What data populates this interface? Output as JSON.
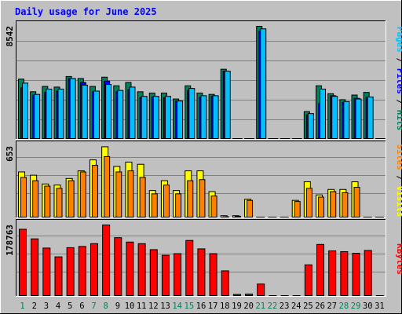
{
  "title": "Daily usage for June 2025",
  "colors": {
    "background": "#C0C0C0",
    "title": "#0000FF",
    "hits": "#00805C",
    "files": "#0000FF",
    "pages": "#00C0FF",
    "visits": "#FFFF00",
    "sites": "#FF8000",
    "kbytes": "#FF0000",
    "weekday_label": "#000000",
    "weekend_label": "#00805C"
  },
  "chart_data": [
    {
      "type": "bar",
      "name": "hits-files-pages",
      "categories": [
        "1",
        "2",
        "3",
        "4",
        "5",
        "6",
        "7",
        "8",
        "9",
        "10",
        "11",
        "12",
        "13",
        "14",
        "15",
        "16",
        "17",
        "18",
        "19",
        "20",
        "21",
        "22",
        "23",
        "24",
        "25",
        "26",
        "27",
        "28",
        "29",
        "30",
        "31"
      ],
      "weekend_days": [
        "1",
        "7",
        "8",
        "14",
        "15",
        "21",
        "22",
        "28",
        "29"
      ],
      "max_label": "8542",
      "ylim": [
        0,
        8542
      ],
      "legend_text": [
        {
          "key": "pages",
          "text": "Pages"
        },
        {
          "key": "sep1",
          "text": " / "
        },
        {
          "key": "files",
          "text": "Files"
        },
        {
          "key": "sep2",
          "text": " / "
        },
        {
          "key": "hits",
          "text": "Hits"
        }
      ],
      "series": [
        {
          "name": "Hits",
          "values": [
            4550,
            3600,
            4000,
            3950,
            4750,
            4600,
            4000,
            4700,
            4050,
            4300,
            3600,
            3500,
            3500,
            3050,
            4050,
            3500,
            3400,
            5300,
            0,
            0,
            8542,
            0,
            0,
            0,
            2100,
            4050,
            3450,
            3000,
            3350,
            3550,
            0
          ]
        },
        {
          "name": "Files",
          "values": [
            3900,
            3350,
            3550,
            3650,
            4600,
            4300,
            3600,
            4400,
            3600,
            3750,
            3150,
            3200,
            3150,
            2900,
            3700,
            3200,
            3250,
            5150,
            0,
            0,
            8200,
            0,
            0,
            0,
            1850,
            2700,
            3300,
            2800,
            3100,
            3200,
            0
          ]
        },
        {
          "name": "Pages",
          "values": [
            4250,
            3400,
            3800,
            3800,
            4600,
            4100,
            3650,
            4150,
            3700,
            3950,
            3250,
            3250,
            3250,
            2900,
            3850,
            3300,
            3300,
            5150,
            0,
            0,
            8350,
            0,
            0,
            0,
            1950,
            3800,
            3250,
            2850,
            3050,
            3200,
            0
          ]
        }
      ]
    },
    {
      "type": "bar",
      "name": "visits-sites",
      "categories": [
        "1",
        "2",
        "3",
        "4",
        "5",
        "6",
        "7",
        "8",
        "9",
        "10",
        "11",
        "12",
        "13",
        "14",
        "15",
        "16",
        "17",
        "18",
        "19",
        "20",
        "21",
        "22",
        "23",
        "24",
        "25",
        "26",
        "27",
        "28",
        "29",
        "30",
        "31"
      ],
      "max_label": "653",
      "ylim": [
        0,
        653
      ],
      "legend_text": [
        {
          "key": "sites",
          "text": "Sites"
        },
        {
          "key": "sep1",
          "text": " / "
        },
        {
          "key": "visits",
          "text": "Visits"
        }
      ],
      "series": [
        {
          "name": "Visits",
          "values": [
            420,
            390,
            310,
            300,
            360,
            430,
            530,
            650,
            470,
            510,
            490,
            250,
            340,
            250,
            430,
            430,
            240,
            20,
            20,
            170,
            0,
            0,
            0,
            160,
            330,
            210,
            260,
            260,
            330,
            0,
            0
          ]
        },
        {
          "name": "Sites",
          "values": [
            370,
            340,
            290,
            270,
            340,
            420,
            480,
            560,
            420,
            430,
            370,
            220,
            300,
            220,
            340,
            350,
            200,
            10,
            15,
            160,
            0,
            0,
            0,
            150,
            270,
            190,
            240,
            230,
            280,
            0,
            0
          ]
        }
      ]
    },
    {
      "type": "bar",
      "name": "kbytes",
      "categories": [
        "1",
        "2",
        "3",
        "4",
        "5",
        "6",
        "7",
        "8",
        "9",
        "10",
        "11",
        "12",
        "13",
        "14",
        "15",
        "16",
        "17",
        "18",
        "19",
        "20",
        "21",
        "22",
        "23",
        "24",
        "25",
        "26",
        "27",
        "28",
        "29",
        "30",
        "31"
      ],
      "max_label": "178763",
      "ylim": [
        0,
        178763
      ],
      "legend_text": [
        {
          "key": "kbytes",
          "text": "KBytes"
        }
      ],
      "series": [
        {
          "name": "KBytes",
          "values": [
            168000,
            144000,
            121000,
            99000,
            122000,
            125000,
            132000,
            178763,
            147000,
            136000,
            132000,
            117000,
            103000,
            107000,
            140000,
            119000,
            107000,
            64000,
            5000,
            6000,
            31000,
            0,
            0,
            0,
            79000,
            130000,
            114000,
            112000,
            108000,
            115000,
            0
          ]
        }
      ]
    }
  ]
}
